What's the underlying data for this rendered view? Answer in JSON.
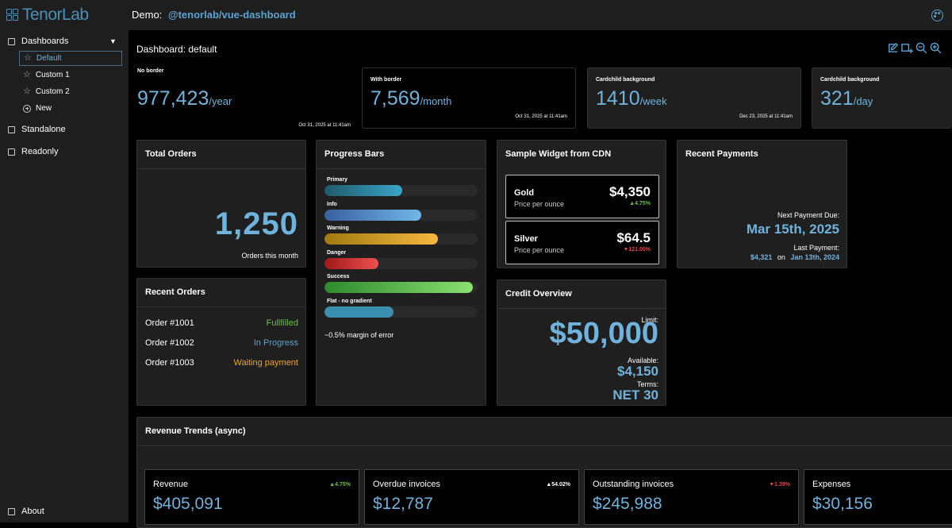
{
  "app": {
    "logo_text": "TenorLab",
    "demo_label": "Demo:",
    "demo_link": "@tenorlab/vue-dashboard"
  },
  "sidebar": {
    "dashboards_label": "Dashboards",
    "items": [
      {
        "label": "Default",
        "active": true
      },
      {
        "label": "Custom 1"
      },
      {
        "label": "Custom 2"
      }
    ],
    "new_label": "New",
    "standalone_label": "Standalone",
    "readonly_label": "Readonly",
    "about_label": "About"
  },
  "dashboard": {
    "title": "Dashboard: default"
  },
  "stats": [
    {
      "label": "No border",
      "value": "977,423",
      "unit": "/year",
      "date": "Oct 31, 2025 at 11:41am"
    },
    {
      "label": "With border",
      "value": "7,569",
      "unit": "/month",
      "date": "Oct 31, 2025 at 11:41am"
    },
    {
      "label": "Cardchild background",
      "value": "1410",
      "unit": "/week",
      "date": "Dec 23, 2025 at 11:41am"
    },
    {
      "label": "Cardchild background",
      "value": "321",
      "unit": "/day",
      "date": ""
    }
  ],
  "total_orders": {
    "title": "Total Orders",
    "value": "1,250",
    "caption": "Orders this month"
  },
  "recent_orders": {
    "title": "Recent Orders",
    "rows": [
      {
        "order": "Order #1001",
        "status": "Fullfilled",
        "color": "#6cc04a"
      },
      {
        "order": "Order #1002",
        "status": "In Progress",
        "color": "#5aa3d0"
      },
      {
        "order": "Order #1003",
        "status": "Waiting payment",
        "color": "#f0a030"
      }
    ]
  },
  "progress_bars": {
    "title": "Progress Bars",
    "bars": [
      {
        "label": "Primary",
        "progress": 0.51,
        "from": "#1d5a6a",
        "to": "#3aa6c8"
      },
      {
        "label": "Info",
        "progress": 0.63,
        "from": "#3a5fa0",
        "to": "#70b8e8"
      },
      {
        "label": "Warning",
        "progress": 0.74,
        "from": "#a07a10",
        "to": "#f5b840"
      },
      {
        "label": "Danger",
        "progress": 0.35,
        "from": "#a01818",
        "to": "#f05050"
      },
      {
        "label": "Success",
        "progress": 0.97,
        "from": "#2e8a2e",
        "to": "#8ae070"
      },
      {
        "label": "Flat - no gradient",
        "progress": 0.45,
        "from": "#3a8fb0",
        "to": "#3a8fb0"
      }
    ],
    "note": "~0.5% margin of error"
  },
  "cdn_widget": {
    "title": "Sample Widget from CDN",
    "metals": [
      {
        "name": "Gold",
        "sub": "Price per ounce",
        "price": "$4,350",
        "change": "▲4.75%",
        "color": "#6cc04a"
      },
      {
        "name": "Silver",
        "sub": "Price per ounce",
        "price": "$64.5",
        "change": "▼121.00%",
        "color": "#e04a4a"
      }
    ]
  },
  "payments": {
    "title": "Recent Payments",
    "next_label": "Next Payment Due:",
    "next_date": "Mar 15th, 2025",
    "last_label": "Last Payment:",
    "last_amount": "$4,321",
    "last_on": "on",
    "last_date": "Jan 13th, 2024"
  },
  "credit": {
    "title": "Credit Overview",
    "limit_label": "Limit:",
    "limit_value": "$50,000",
    "available_label": "Available:",
    "available_value": "$4,150",
    "terms_label": "Terms:",
    "terms_value": "NET 30"
  },
  "revenue": {
    "title": "Revenue Trends (async)",
    "cards": [
      {
        "label": "Revenue",
        "change": "▲4.75%",
        "color": "#6cc04a",
        "value": "$405,091"
      },
      {
        "label": "Overdue invoices",
        "change": "▲54.02%",
        "color": "#ffffff",
        "value": "$12,787"
      },
      {
        "label": "Outstanding invoices",
        "change": "▼1.39%",
        "color": "#e04a4a",
        "value": "$245,988"
      },
      {
        "label": "Expenses",
        "change": "",
        "color": "#ffffff",
        "value": "$30,156"
      }
    ]
  },
  "colors": {
    "accent": "#6fb3dc",
    "panel": "#1f1f1f",
    "topbar": "#1e1e1e"
  }
}
